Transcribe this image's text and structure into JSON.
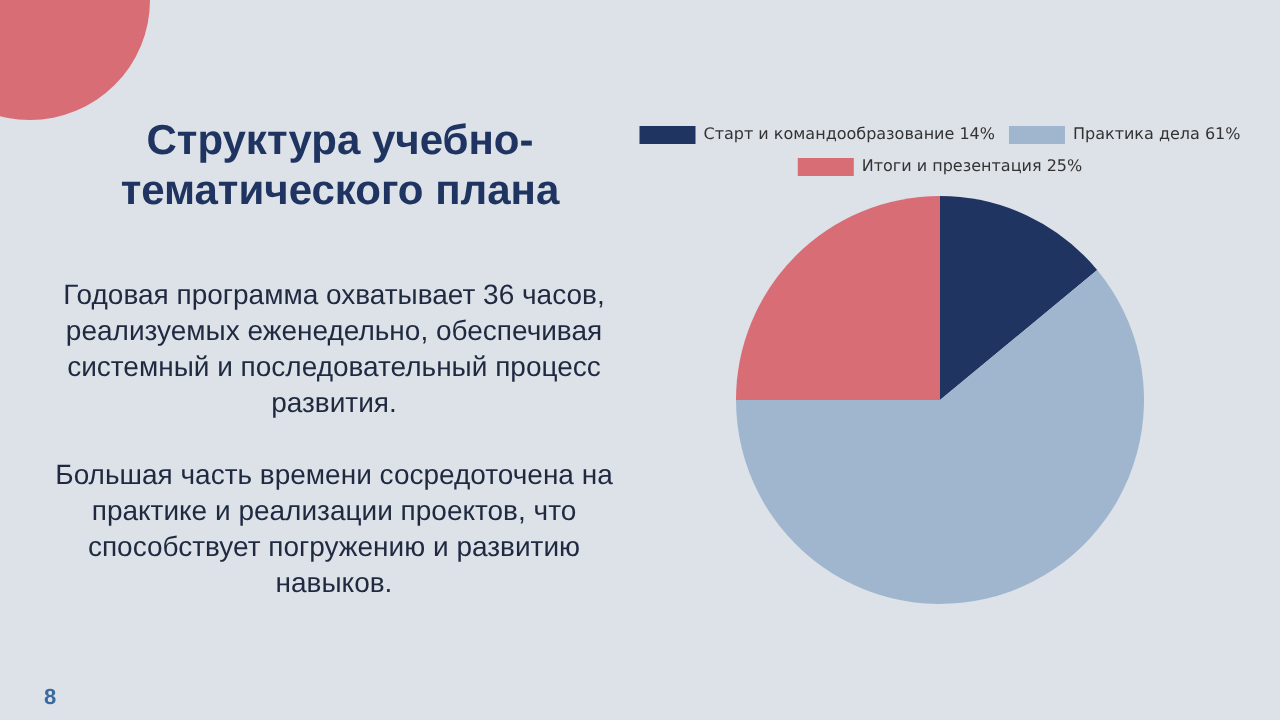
{
  "chart_data": {
    "type": "pie",
    "title": "Структура учебно-тематического плана",
    "categories": [
      "Старт и командообразование 14%",
      "Практика дела 61%",
      "Итоги и презентация 25%"
    ],
    "values": [
      14,
      61,
      25
    ],
    "colors": [
      "#1f3461",
      "#a0b6ce",
      "#d96d76"
    ],
    "legend": "top",
    "annotations": [
      "Годовая программа охватывает 36 часов, реализуемых еженедельно, обеспечивая системный и последовательный процесс развития.",
      "Большая часть времени сосредоточена на практике и реализации проектов, что способствует погружению и развитию навыков.",
      "8"
    ]
  }
}
